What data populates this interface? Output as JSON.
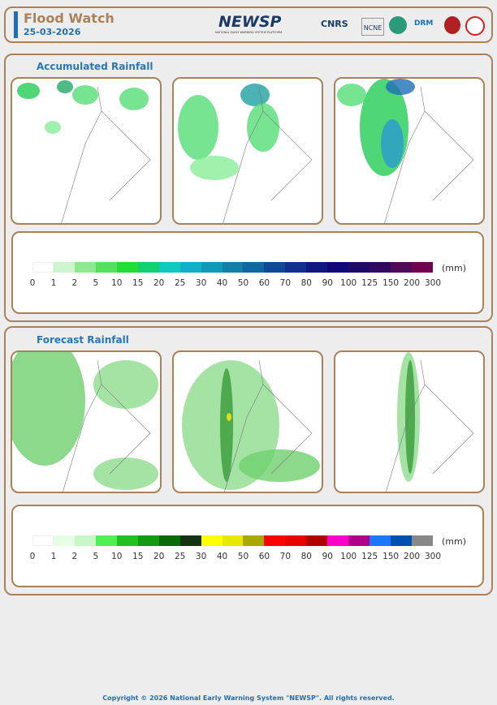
{
  "header": {
    "title": "Flood Watch",
    "date": "25-03-2026",
    "logo": "NEWSP",
    "logo_subtitle": "NATIONAL EARLY WARNING SYSTEM PLATFORM",
    "partners": [
      "CNRS",
      "NCNE",
      "DRM"
    ]
  },
  "sections": [
    {
      "title": "Accumulated Rainfall",
      "legend": {
        "unit": "(mm)",
        "ticks": [
          0,
          1,
          2,
          5,
          10,
          15,
          20,
          25,
          30,
          40,
          50,
          60,
          70,
          80,
          90,
          100,
          125,
          150,
          200,
          300
        ],
        "colors": [
          "#ffffff",
          "#ccf5d0",
          "#8ee890",
          "#55e060",
          "#22dd33",
          "#10d070",
          "#10c8c0",
          "#10b0c8",
          "#1098b8",
          "#1080a8",
          "#1068a0",
          "#104898",
          "#103090",
          "#101880",
          "#100878",
          "#200868",
          "#300860",
          "#500858",
          "#700050"
        ]
      }
    },
    {
      "title": "Forecast Rainfall",
      "legend": {
        "unit": "(mm)",
        "ticks": [
          0,
          1,
          2,
          5,
          10,
          15,
          20,
          25,
          30,
          40,
          50,
          60,
          70,
          80,
          90,
          100,
          125,
          150,
          200,
          300
        ],
        "colors": [
          "#ffffff",
          "#e6fde6",
          "#c8f8c8",
          "#50f050",
          "#22c022",
          "#129a12",
          "#0a6a0a",
          "#123212",
          "#ffff00",
          "#e8e800",
          "#a8a800",
          "#ff0000",
          "#e80000",
          "#b00000",
          "#ff00cc",
          "#b0008a",
          "#1a78ff",
          "#0050b0",
          "#888888"
        ]
      }
    }
  ],
  "footer": "Copyright © 2026 National Early Warning System \"NEWSP\". All rights reserved."
}
